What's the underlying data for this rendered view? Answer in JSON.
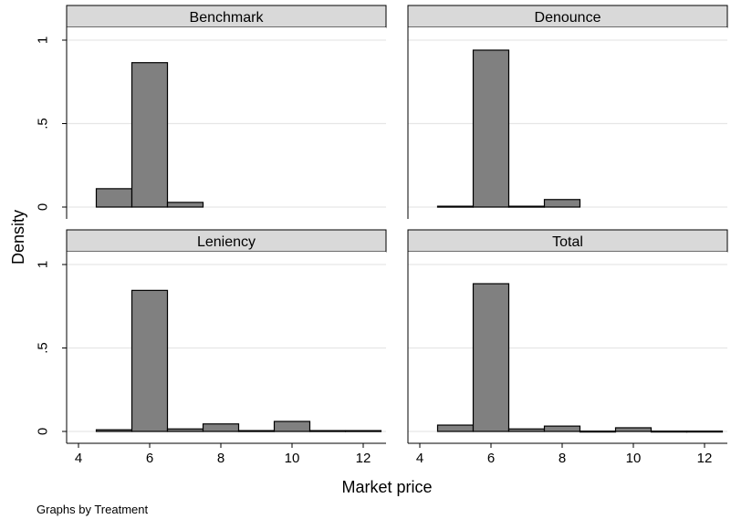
{
  "chart_data": {
    "type": "bar",
    "subtype": "histogram",
    "xlabel": "Market price",
    "ylabel": "Density",
    "note": "Graphs by Treatment",
    "xlim": [
      4,
      12.5
    ],
    "ylim": [
      0,
      1
    ],
    "xticks": [
      4,
      6,
      8,
      10,
      12
    ],
    "yticks": [
      {
        "value": 0,
        "label": "0"
      },
      {
        "value": 0.5,
        "label": ".5"
      },
      {
        "value": 1,
        "label": "1"
      }
    ],
    "grid": true,
    "bin_width": 1,
    "colors": {
      "bar_fill": "#808080",
      "bar_stroke": "#000000",
      "strip_fill": "#d9d9d9",
      "grid": "#e6e6e6"
    },
    "panels": [
      {
        "title": "Benchmark",
        "bins": [
          {
            "x": 5,
            "value": 0.11
          },
          {
            "x": 6,
            "value": 0.865
          },
          {
            "x": 7,
            "value": 0.028
          }
        ]
      },
      {
        "title": "Denounce",
        "bins": [
          {
            "x": 5,
            "value": 0.005
          },
          {
            "x": 6,
            "value": 0.94
          },
          {
            "x": 7,
            "value": 0.005
          },
          {
            "x": 8,
            "value": 0.045
          }
        ]
      },
      {
        "title": "Leniency",
        "bins": [
          {
            "x": 5,
            "value": 0.01
          },
          {
            "x": 6,
            "value": 0.845
          },
          {
            "x": 7,
            "value": 0.015
          },
          {
            "x": 8,
            "value": 0.045
          },
          {
            "x": 9,
            "value": 0.005
          },
          {
            "x": 10,
            "value": 0.06
          },
          {
            "x": 11,
            "value": 0.005
          },
          {
            "x": 12,
            "value": 0.005
          }
        ]
      },
      {
        "title": "Total",
        "bins": [
          {
            "x": 5,
            "value": 0.038
          },
          {
            "x": 6,
            "value": 0.885
          },
          {
            "x": 7,
            "value": 0.015
          },
          {
            "x": 8,
            "value": 0.032
          },
          {
            "x": 9,
            "value": 0.002
          },
          {
            "x": 10,
            "value": 0.022
          },
          {
            "x": 11,
            "value": 0.002
          },
          {
            "x": 12,
            "value": 0.002
          }
        ]
      }
    ]
  }
}
